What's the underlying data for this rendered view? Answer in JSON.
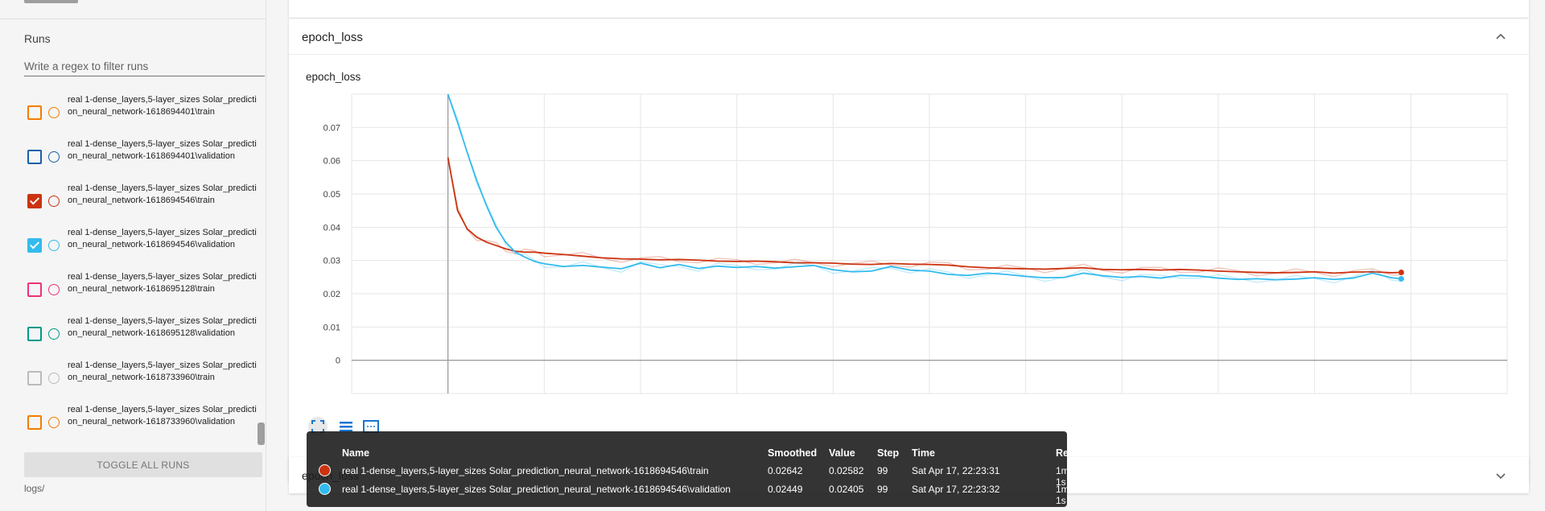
{
  "sidebar": {
    "runs_title": "Runs",
    "filter_placeholder": "Write a regex to filter runs",
    "runs": [
      {
        "label": "real 1-dense_layers,5-layer_sizes Solar_prediction_neural_network-1618694401\\train",
        "color": "#f57c00",
        "checked": false
      },
      {
        "label": "real 1-dense_layers,5-layer_sizes Solar_prediction_neural_network-1618694401\\validation",
        "color": "#1a5fa8",
        "checked": false
      },
      {
        "label": "real 1-dense_layers,5-layer_sizes Solar_prediction_neural_network-1618694546\\train",
        "color": "#cc3311",
        "checked": true
      },
      {
        "label": "real 1-dense_layers,5-layer_sizes Solar_prediction_neural_network-1618694546\\validation",
        "color": "#33bbee",
        "checked": true
      },
      {
        "label": "real 1-dense_layers,5-layer_sizes Solar_prediction_neural_network-1618695128\\train",
        "color": "#ee3377",
        "checked": false
      },
      {
        "label": "real 1-dense_layers,5-layer_sizes Solar_prediction_neural_network-1618695128\\validation",
        "color": "#009988",
        "checked": false
      },
      {
        "label": "real 1-dense_layers,5-layer_sizes Solar_prediction_neural_network-1618733960\\train",
        "color": "#bbbbbb",
        "checked": false
      },
      {
        "label": "real 1-dense_layers,5-layer_sizes Solar_prediction_neural_network-1618733960\\validation",
        "color": "#f57c00",
        "checked": false
      }
    ],
    "toggle_all_label": "TOGGLE ALL RUNS",
    "logdir": "logs/"
  },
  "main": {
    "card_title": "epoch_loss",
    "chart_title": "epoch_loss",
    "second_card_title": "epoch_loss"
  },
  "chart_data": {
    "type": "line",
    "title": "epoch_loss",
    "xlabel": "",
    "ylabel": "",
    "xlim": [
      -10,
      110
    ],
    "ylim": [
      -0.01,
      0.08
    ],
    "xticks": [
      0,
      10,
      20,
      30,
      40,
      50,
      60,
      70,
      80,
      90,
      100
    ],
    "yticks": [
      0,
      0.01,
      0.02,
      0.03,
      0.04,
      0.05,
      0.06,
      0.07
    ],
    "ytick_labels": [
      "0",
      "0.01",
      "0.02",
      "0.03",
      "0.04",
      "0.05",
      "0.06",
      "0.07"
    ],
    "grid": true,
    "smoothed": true,
    "series": [
      {
        "color": "#cc3311",
        "x": [
          0,
          1,
          2,
          3,
          4,
          5,
          6,
          7,
          8,
          9,
          10,
          12,
          14,
          16,
          18,
          20,
          22,
          24,
          26,
          28,
          30,
          32,
          34,
          36,
          38,
          40,
          42,
          44,
          46,
          48,
          50,
          52,
          54,
          56,
          58,
          60,
          62,
          64,
          66,
          68,
          70,
          72,
          74,
          76,
          78,
          80,
          82,
          84,
          86,
          88,
          90,
          92,
          94,
          96,
          98,
          99
        ],
        "y": [
          0.061,
          0.045,
          0.0395,
          0.037,
          0.0355,
          0.0345,
          0.0335,
          0.0328,
          0.0325,
          0.0325,
          0.0322,
          0.0318,
          0.0313,
          0.0308,
          0.0305,
          0.0304,
          0.0302,
          0.0303,
          0.0301,
          0.0298,
          0.0297,
          0.0298,
          0.0296,
          0.0293,
          0.0293,
          0.0292,
          0.0289,
          0.0288,
          0.0291,
          0.0289,
          0.0288,
          0.0286,
          0.0281,
          0.0278,
          0.0276,
          0.0275,
          0.0274,
          0.0276,
          0.0278,
          0.0273,
          0.0272,
          0.0273,
          0.0271,
          0.0273,
          0.0271,
          0.0268,
          0.0266,
          0.0264,
          0.0263,
          0.0264,
          0.0266,
          0.0262,
          0.0265,
          0.0266,
          0.0263,
          0.02642
        ]
      },
      {
        "color": "#33bbee",
        "x": [
          0,
          1,
          2,
          3,
          4,
          5,
          6,
          7,
          8,
          9,
          10,
          12,
          14,
          16,
          18,
          20,
          22,
          24,
          26,
          28,
          30,
          32,
          34,
          36,
          38,
          40,
          42,
          44,
          46,
          48,
          50,
          52,
          54,
          56,
          58,
          60,
          62,
          64,
          66,
          68,
          70,
          72,
          74,
          76,
          78,
          80,
          82,
          84,
          86,
          88,
          90,
          92,
          94,
          96,
          98,
          99
        ],
        "y": [
          0.08,
          0.0715,
          0.0625,
          0.054,
          0.0465,
          0.04,
          0.0355,
          0.0325,
          0.031,
          0.0297,
          0.029,
          0.0282,
          0.0285,
          0.028,
          0.0275,
          0.0292,
          0.0278,
          0.0288,
          0.0276,
          0.0283,
          0.0279,
          0.0282,
          0.0277,
          0.0281,
          0.0285,
          0.0272,
          0.0266,
          0.0268,
          0.0282,
          0.0271,
          0.0268,
          0.0258,
          0.0255,
          0.0262,
          0.0258,
          0.0252,
          0.0248,
          0.0249,
          0.0262,
          0.0254,
          0.0249,
          0.0252,
          0.0247,
          0.0255,
          0.0253,
          0.0247,
          0.0243,
          0.0245,
          0.0242,
          0.0244,
          0.0248,
          0.0243,
          0.0247,
          0.0262,
          0.0248,
          0.02449
        ]
      }
    ],
    "tooltip": {
      "headers": [
        "Name",
        "Smoothed",
        "Value",
        "Step",
        "Time",
        "Relative"
      ],
      "rows": [
        {
          "color": "#cc3311",
          "name": "real 1-dense_layers,5-layer_sizes Solar_prediction_neural_network-1618694546\\train",
          "smoothed": "0.02642",
          "value": "0.02582",
          "step": "99",
          "time": "Sat Apr 17, 22:23:31",
          "relative": "1m 1s"
        },
        {
          "color": "#33bbee",
          "name": "real 1-dense_layers,5-layer_sizes Solar_prediction_neural_network-1618694546\\validation",
          "smoothed": "0.02449",
          "value": "0.02405",
          "step": "99",
          "time": "Sat Apr 17, 22:23:32",
          "relative": "1m 1s"
        }
      ]
    }
  }
}
